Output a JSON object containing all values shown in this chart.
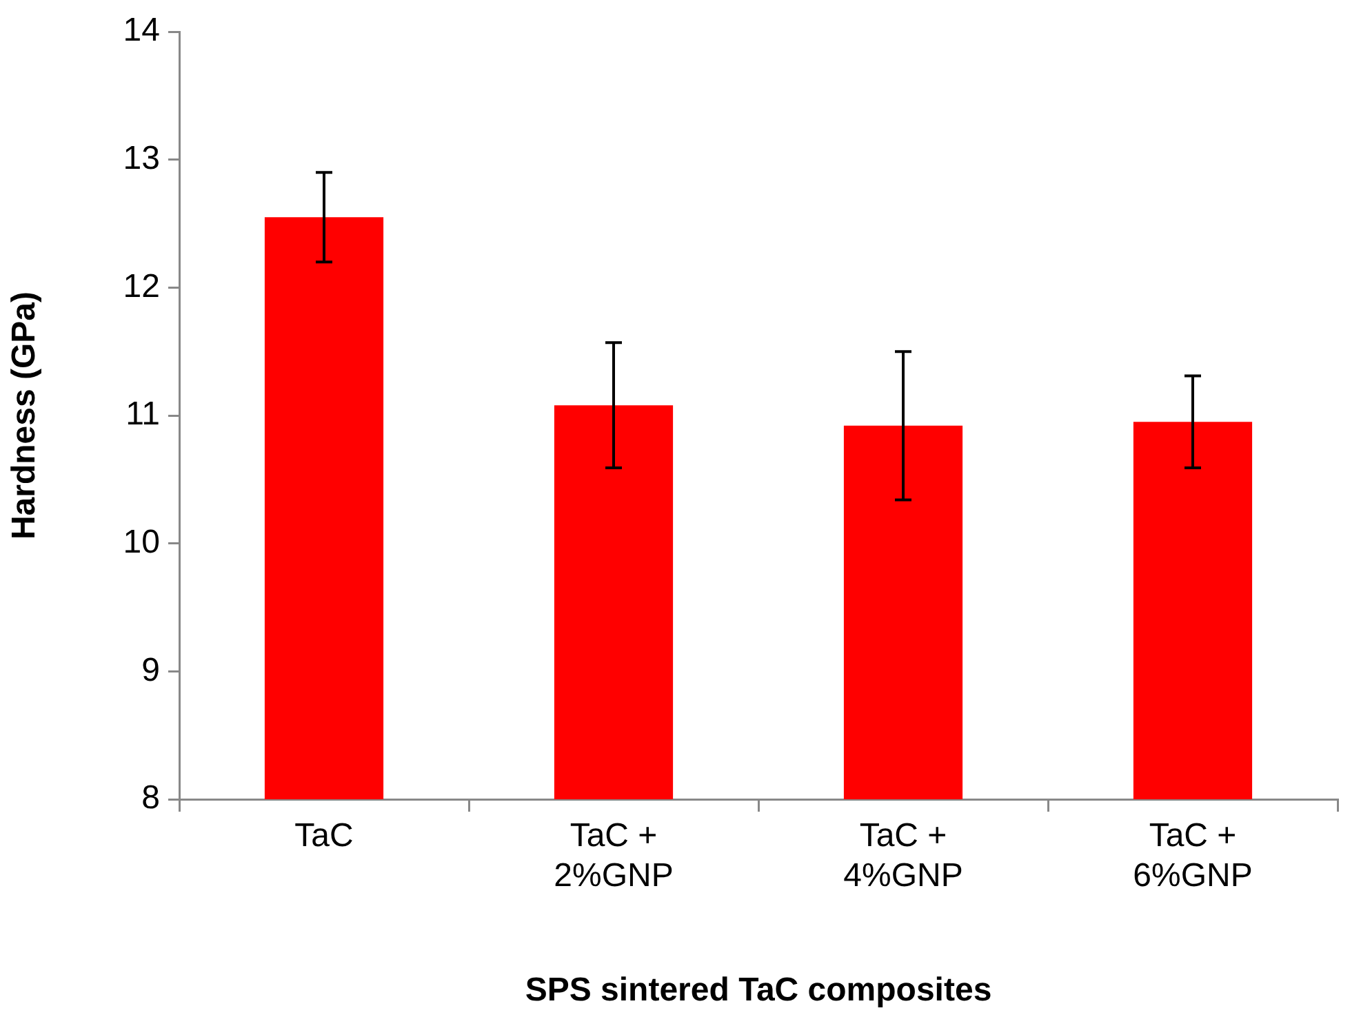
{
  "chart_data": {
    "type": "bar",
    "xlabel": "SPS sintered TaC composites",
    "ylabel": "Hardness (GPa)",
    "categories": [
      "TaC",
      "TaC +\n2%GNP",
      "TaC +\n4%GNP",
      "TaC +\n6%GNP"
    ],
    "values": [
      12.55,
      11.08,
      10.92,
      10.95
    ],
    "errors": [
      0.35,
      0.49,
      0.58,
      0.36
    ],
    "color": "#ff0000",
    "ylim": [
      8,
      14
    ],
    "yticks": [
      8,
      9,
      10,
      11,
      12,
      13,
      14
    ],
    "grid": false,
    "legend": false
  }
}
